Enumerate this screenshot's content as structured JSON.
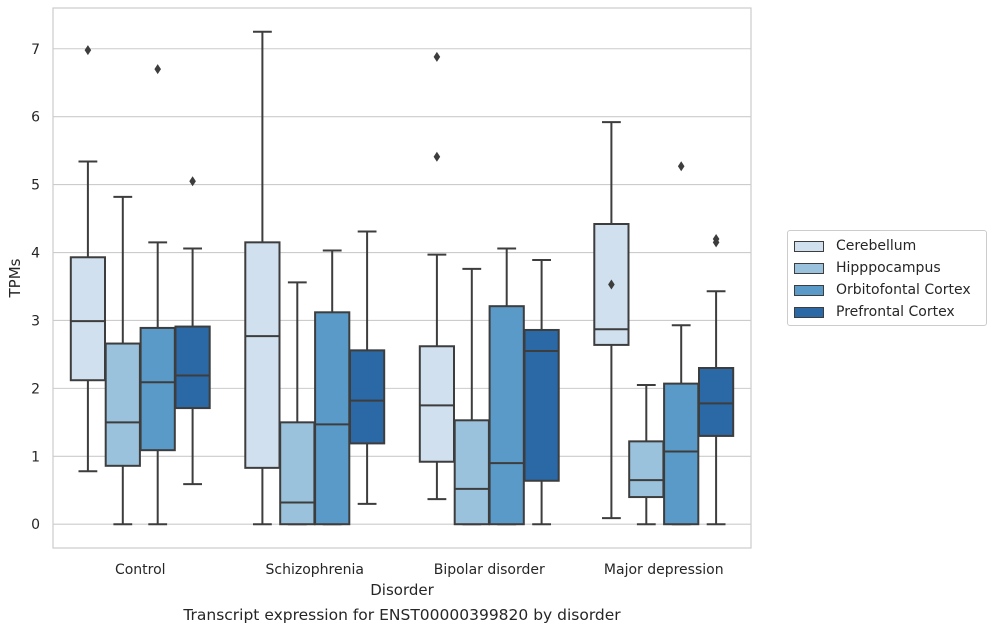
{
  "chart_data": {
    "type": "box",
    "title": "Transcript expression for ENST00000399820 by disorder",
    "xlabel": "Disorder",
    "ylabel": "TPMs",
    "ylim": [
      -0.35,
      7.6
    ],
    "yticks": [
      0,
      1,
      2,
      3,
      4,
      5,
      6,
      7
    ],
    "grid": true,
    "legend_position": "right",
    "categories": [
      "Control",
      "Schizophrenia",
      "Bipolar disorder",
      "Major depression"
    ],
    "series": [
      {
        "name": "Cerebellum",
        "color": "#d0e0ef",
        "boxes": [
          {
            "whisker_low": 0.78,
            "q1": 2.12,
            "median": 2.99,
            "q3": 3.93,
            "whisker_high": 5.34,
            "outliers": [
              6.98
            ]
          },
          {
            "whisker_low": 0.0,
            "q1": 0.83,
            "median": 2.77,
            "q3": 4.15,
            "whisker_high": 7.25,
            "outliers": []
          },
          {
            "whisker_low": 0.37,
            "q1": 0.92,
            "median": 1.75,
            "q3": 2.62,
            "whisker_high": 3.97,
            "outliers": [
              5.41,
              6.88
            ]
          },
          {
            "whisker_low": 0.09,
            "q1": 2.64,
            "median": 2.87,
            "q3": 4.42,
            "whisker_high": 5.92,
            "outliers": [
              3.53
            ]
          }
        ]
      },
      {
        "name": "Hipppocampus",
        "color": "#9ac2dc",
        "boxes": [
          {
            "whisker_low": 0.0,
            "q1": 0.86,
            "median": 1.5,
            "q3": 2.66,
            "whisker_high": 4.82,
            "outliers": []
          },
          {
            "whisker_low": 0.0,
            "q1": 0.0,
            "median": 0.32,
            "q3": 1.5,
            "whisker_high": 3.56,
            "outliers": []
          },
          {
            "whisker_low": 0.0,
            "q1": 0.0,
            "median": 0.52,
            "q3": 1.53,
            "whisker_high": 3.76,
            "outliers": []
          },
          {
            "whisker_low": 0.0,
            "q1": 0.4,
            "median": 0.65,
            "q3": 1.22,
            "whisker_high": 2.05,
            "outliers": []
          }
        ]
      },
      {
        "name": "Orbitofontal Cortex",
        "color": "#5a9ac8",
        "boxes": [
          {
            "whisker_low": 0.0,
            "q1": 1.09,
            "median": 2.09,
            "q3": 2.89,
            "whisker_high": 4.15,
            "outliers": [
              6.7
            ]
          },
          {
            "whisker_low": 0.0,
            "q1": 0.0,
            "median": 1.47,
            "q3": 3.12,
            "whisker_high": 4.03,
            "outliers": []
          },
          {
            "whisker_low": 0.0,
            "q1": 0.0,
            "median": 0.9,
            "q3": 3.21,
            "whisker_high": 4.06,
            "outliers": []
          },
          {
            "whisker_low": 0.0,
            "q1": 0.0,
            "median": 1.07,
            "q3": 2.07,
            "whisker_high": 2.93,
            "outliers": [
              5.27
            ]
          }
        ]
      },
      {
        "name": "Prefrontal Cortex",
        "color": "#2a68a6",
        "boxes": [
          {
            "whisker_low": 0.59,
            "q1": 1.71,
            "median": 2.19,
            "q3": 2.91,
            "whisker_high": 4.06,
            "outliers": [
              5.05
            ]
          },
          {
            "whisker_low": 0.3,
            "q1": 1.19,
            "median": 1.82,
            "q3": 2.56,
            "whisker_high": 4.31,
            "outliers": []
          },
          {
            "whisker_low": 0.0,
            "q1": 0.64,
            "median": 2.55,
            "q3": 2.86,
            "whisker_high": 3.89,
            "outliers": []
          },
          {
            "whisker_low": 0.0,
            "q1": 1.3,
            "median": 1.78,
            "q3": 2.3,
            "whisker_high": 3.43,
            "outliers": [
              4.15,
              4.2
            ]
          }
        ]
      }
    ]
  }
}
